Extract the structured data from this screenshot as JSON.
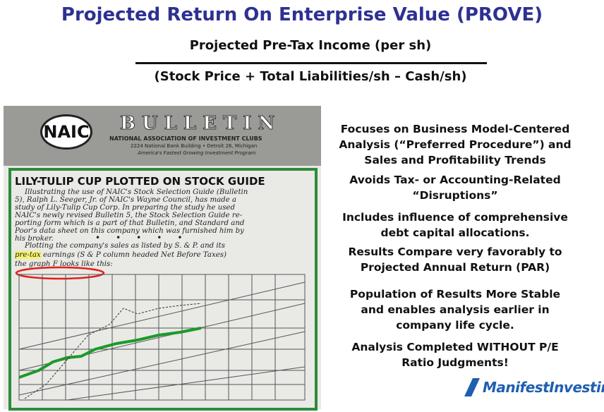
{
  "header": {
    "title": "Projected Return On Enterprise Value  (PROVE)",
    "numerator": "Projected Pre-Tax Income (per sh)",
    "denominator": "(Stock Price + Total Liabilities/sh – Cash/sh)"
  },
  "bulletin": {
    "logo": "NAIC",
    "masthead": "BULLETIN",
    "organization": "NATIONAL ASSOCIATION OF INVESTMENT CLUBS",
    "address": "2224 National Bank Building • Detroit 26, Michigan",
    "tagline": "America's Fastest Growing Investment Program",
    "headline": "LILY-TULIP CUP PLOTTED ON STOCK GUIDE",
    "intro": [
      "Illustrating the use of NAIC's Stock Selection Guide (Bulletin",
      "5), Ralph L. Seeger, Jr. of NAIC's Wayne Council, has made a",
      "study of Lily-Tulip Cup Corp. In preparing the study he used",
      "NAIC's newly revised Bulletin 5, the Stock Selection Guide re-",
      "porting form which is a part of that Bulletin, and Standard and",
      "Poor's data sheet on this company which was furnished him by",
      "his broker."
    ],
    "plot_line1": "Plotting the company's sales as listed by S. & P. and its",
    "highlight": "pre-tax",
    "plot_line2": " earnings (S & P column headed Net Before Taxes)",
    "plot_line3": "the graph F looks like this:"
  },
  "bullets": [
    [
      "Focuses on Business Model-Centered",
      "Analysis (“Preferred Procedure”) and",
      "Sales and Profitability Trends"
    ],
    [
      "Avoids Tax- or Accounting-Related",
      "“Disruptions”"
    ],
    [
      "Includes influence of comprehensive",
      "debt capital allocations."
    ],
    [
      "Results Compare very favorably to",
      "Projected Annual Return (PAR)"
    ],
    [
      "Population of Results More Stable",
      "and enables analysis earlier in",
      "company life cycle."
    ],
    [
      "Analysis Completed WITHOUT P/E",
      "Ratio Judgments!"
    ]
  ],
  "brand": {
    "name": "ManifestInvesting"
  }
}
